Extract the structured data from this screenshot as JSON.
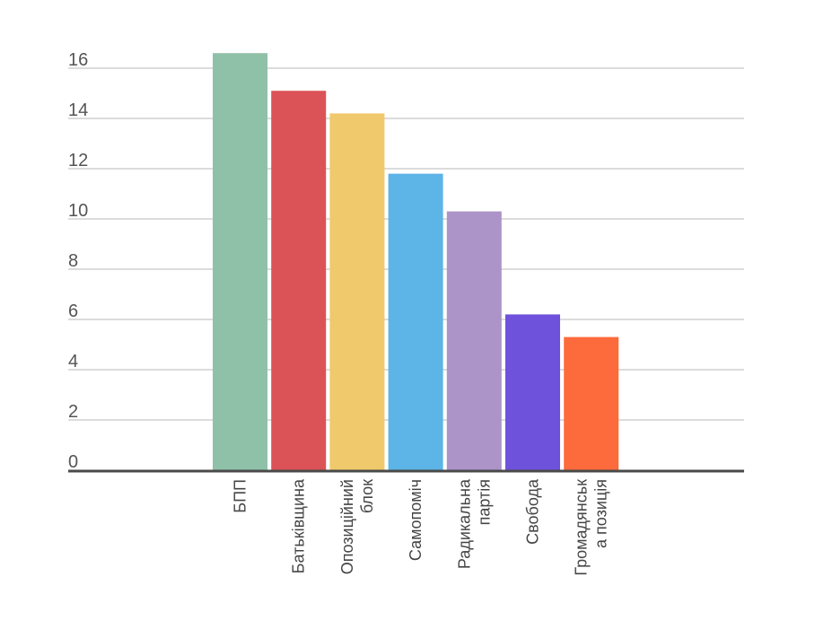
{
  "chart_data": {
    "type": "bar",
    "title": "",
    "xlabel": "",
    "ylabel": "",
    "ylim": [
      0,
      16
    ],
    "yticks": [
      0,
      2,
      4,
      6,
      8,
      10,
      12,
      14,
      16
    ],
    "grid": true,
    "legend": "none",
    "categories": [
      [
        "БПП"
      ],
      [
        "Батьківщина"
      ],
      [
        "Опозиційний",
        "блок"
      ],
      [
        "Самопоміч"
      ],
      [
        "Радикальна",
        "партія"
      ],
      [
        "Свобода"
      ],
      [
        "Громадянськ",
        "а позиція"
      ]
    ],
    "values": [
      16.6,
      15.1,
      14.2,
      11.8,
      10.3,
      6.2,
      5.3
    ],
    "colors": [
      "#8fc1a9",
      "#db5356",
      "#efc96b",
      "#5db4e6",
      "#ac94c9",
      "#6f52dc",
      "#fd6b3c"
    ]
  }
}
